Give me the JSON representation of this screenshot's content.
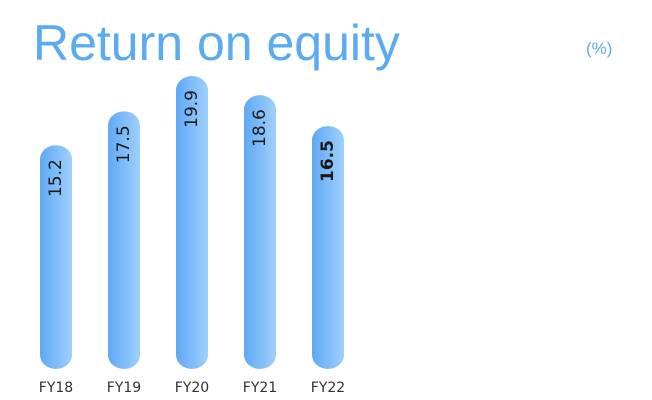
{
  "chart_data": {
    "type": "bar",
    "title": "Return on equity",
    "unit": "(%)",
    "categories": [
      "FY18",
      "FY19",
      "FY20",
      "FY21",
      "FY22"
    ],
    "values": [
      15.2,
      17.5,
      19.9,
      18.6,
      16.5
    ],
    "color": "#7dbdf8"
  }
}
